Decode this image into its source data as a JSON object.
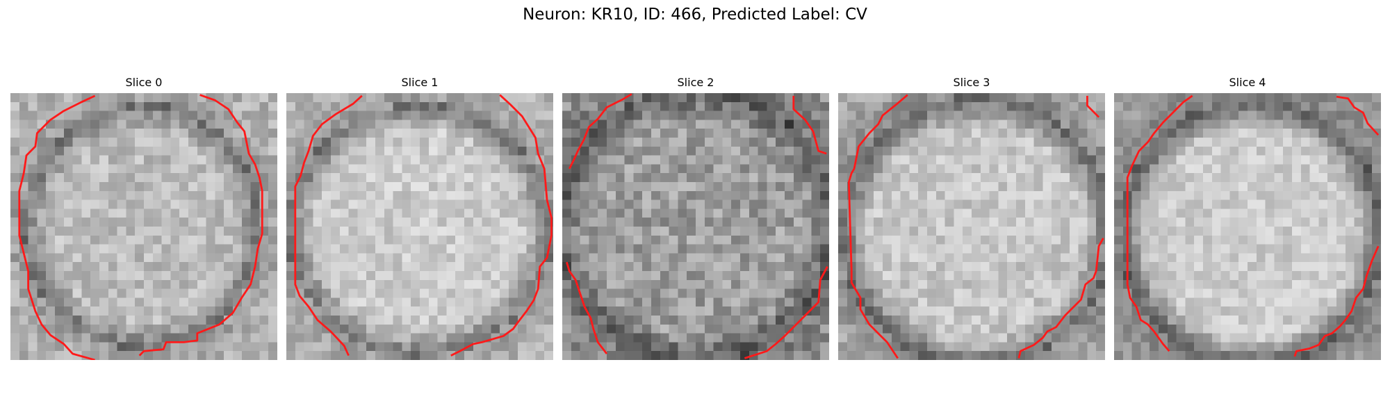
{
  "figure": {
    "title": "Neuron: KR10, ID: 466, Predicted Label: CV"
  },
  "panels": [
    {
      "title": "Slice 0"
    },
    {
      "title": "Slice 1"
    },
    {
      "title": "Slice 2"
    },
    {
      "title": "Slice 3"
    },
    {
      "title": "Slice 4"
    }
  ],
  "colors": {
    "contour": "#ff1a1a",
    "colormap": "gray"
  }
}
